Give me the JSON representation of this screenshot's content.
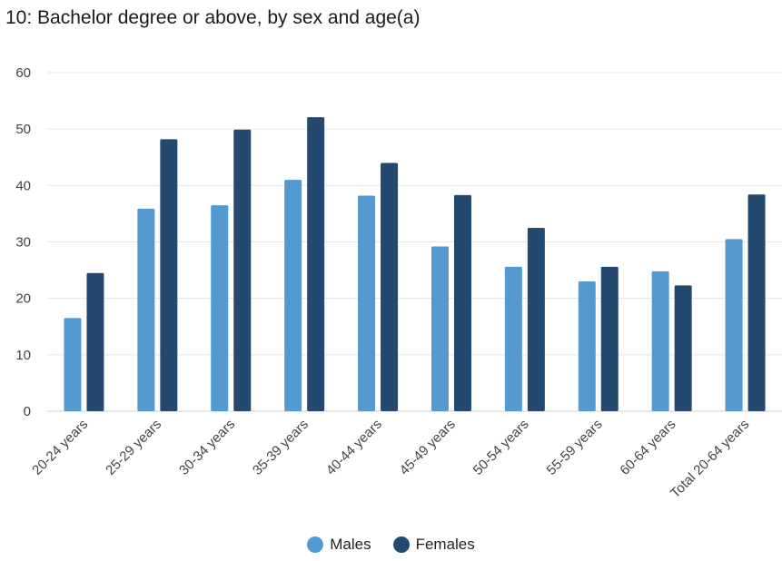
{
  "chart_data": {
    "type": "bar",
    "title": "10: Bachelor degree or above, by sex and age(a)",
    "xlabel": "",
    "ylabel": "",
    "ylim": [
      0,
      60
    ],
    "yticks": [
      0,
      10,
      20,
      30,
      40,
      50,
      60
    ],
    "grid": true,
    "legend_position": "bottom-center",
    "categories": [
      "20-24 years",
      "25-29 years",
      "30-34 years",
      "35-39 years",
      "40-44 years",
      "45-49 years",
      "50-54 years",
      "55-59 years",
      "60-64 years",
      "Total 20-64 years"
    ],
    "series": [
      {
        "name": "Males",
        "color": "#5499cf",
        "values": [
          16.5,
          35.9,
          36.5,
          41.0,
          38.2,
          29.2,
          25.6,
          23.0,
          24.8,
          30.5
        ]
      },
      {
        "name": "Females",
        "color": "#23496f",
        "values": [
          24.5,
          48.2,
          49.9,
          52.1,
          44.0,
          38.3,
          32.5,
          25.6,
          22.3,
          38.4
        ]
      }
    ]
  }
}
